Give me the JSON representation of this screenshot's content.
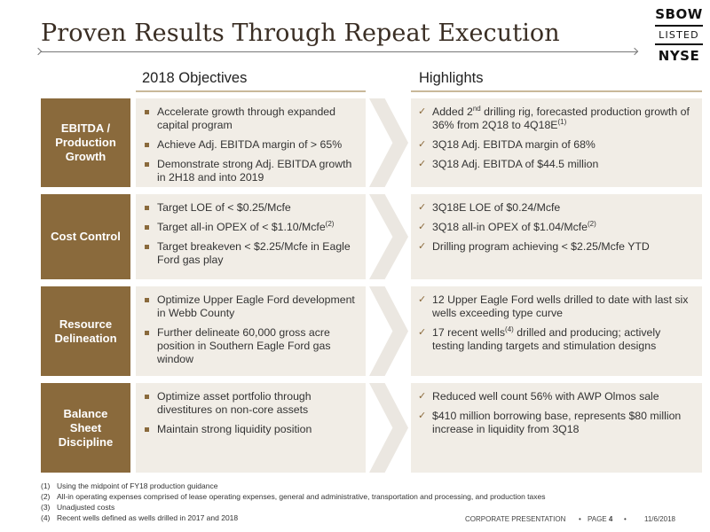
{
  "title": "Proven Results Through Repeat Execution",
  "logo": {
    "line1": "SBOW",
    "line2": "LISTED",
    "line3": "NYSE"
  },
  "column_headers": {
    "objectives": "2018 Objectives",
    "highlights": "Highlights"
  },
  "rows": [
    {
      "label": [
        "EBITDA /",
        "Production",
        "Growth"
      ],
      "objectives": [
        [
          "Accelerate growth through expanded capital program"
        ],
        [
          "Achieve Adj. EBITDA margin of > 65%"
        ],
        [
          "Demonstrate strong Adj. EBITDA growth in 2H18 and into 2019"
        ]
      ],
      "highlights": [
        [
          "Added 2",
          "nd",
          " drilling rig, forecasted production growth of 36% from 2Q18 to 4Q18E",
          "(1)"
        ],
        [
          "3Q18 Adj. EBITDA margin of 68%"
        ],
        [
          "3Q18 Adj. EBITDA of $44.5 million"
        ]
      ]
    },
    {
      "label": [
        "Cost Control"
      ],
      "objectives": [
        [
          "Target LOE of < $0.25/Mcfe"
        ],
        [
          "Target all-in OPEX of < $1.10/Mcfe",
          "(2)"
        ],
        [
          "Target breakeven < $2.25/Mcfe in Eagle Ford gas play"
        ]
      ],
      "highlights": [
        [
          "3Q18E LOE of $0.24/Mcfe"
        ],
        [
          "3Q18 all-in OPEX of $1.04/Mcfe",
          "(2)"
        ],
        [
          "Drilling program achieving < $2.25/Mcfe YTD"
        ]
      ]
    },
    {
      "label": [
        "Resource",
        "Delineation"
      ],
      "objectives": [
        [
          "Optimize Upper Eagle Ford development in Webb County"
        ],
        [
          "Further delineate 60,000 gross acre position in Southern Eagle Ford gas window"
        ]
      ],
      "highlights": [
        [
          "12 Upper Eagle Ford wells drilled to date with last six wells exceeding type curve"
        ],
        [
          "17 recent wells",
          "(4)",
          " drilled and producing; actively testing landing targets and stimulation designs"
        ]
      ]
    },
    {
      "label": [
        "Balance",
        "Sheet",
        "Discipline"
      ],
      "objectives": [
        [
          "Optimize asset portfolio through divestitures on non-core assets"
        ],
        [
          "Maintain strong liquidity position"
        ]
      ],
      "highlights": [
        [
          "Reduced well count 56% with AWP Olmos sale"
        ],
        [
          "$410 million borrowing base, represents $80 million increase in liquidity from 3Q18"
        ]
      ]
    }
  ],
  "footnotes": [
    {
      "num": "(1)",
      "text": "Using the midpoint of FY18 production guidance"
    },
    {
      "num": "(2)",
      "text": "All-in operating expenses comprised of lease operating expenses, general and administrative, transportation and processing, and production taxes"
    },
    {
      "num": "(3)",
      "text": "Unadjusted costs"
    },
    {
      "num": "(4)",
      "text": "Recent wells defined as wells drilled in 2017 and 2018"
    }
  ],
  "footer": {
    "section": "CORPORATE PRESENTATION",
    "page_label": "PAGE",
    "page_num": "4",
    "date": "11/6/2018"
  },
  "colors": {
    "accent": "#8a6a3c",
    "panel": "#f1ede6",
    "chevron": "#ebe7e1"
  }
}
